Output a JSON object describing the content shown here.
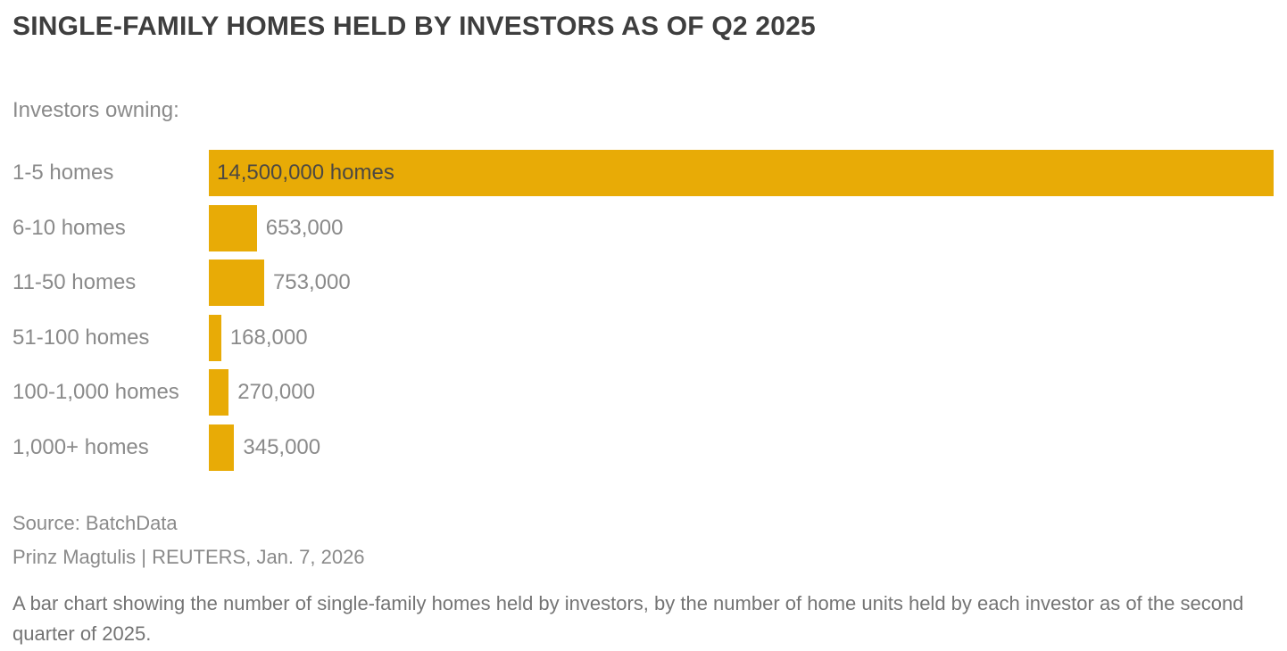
{
  "header": {
    "title": "SINGLE-FAMILY HOMES HELD BY INVESTORS AS OF Q2 2025"
  },
  "chart_data": {
    "type": "bar",
    "orientation": "horizontal",
    "title": "SINGLE-FAMILY HOMES HELD BY INVESTORS AS OF Q2 2025",
    "subtitle": "Investors owning:",
    "categories": [
      "1-5 homes",
      "6-10 homes",
      "11-50 homes",
      "51-100 homes",
      "100-1,000 homes",
      "1,000+ homes"
    ],
    "values": [
      14500000,
      653000,
      753000,
      168000,
      270000,
      345000
    ],
    "value_labels": [
      "14,500,000 homes",
      "653,000",
      "753,000",
      "168,000",
      "270,000",
      "345,000"
    ],
    "xlim": [
      0,
      14500000
    ],
    "grid": false,
    "legend": "none",
    "bar_color": "#E8AB06",
    "first_label_inside": true
  },
  "footer": {
    "source": "Source: BatchData",
    "byline": "Prinz Magtulis | REUTERS, Jan. 7, 2026",
    "caption": "A bar chart showing the number of single-family homes held by investors, by the number of home units held by each investor as of the second quarter of 2025."
  }
}
